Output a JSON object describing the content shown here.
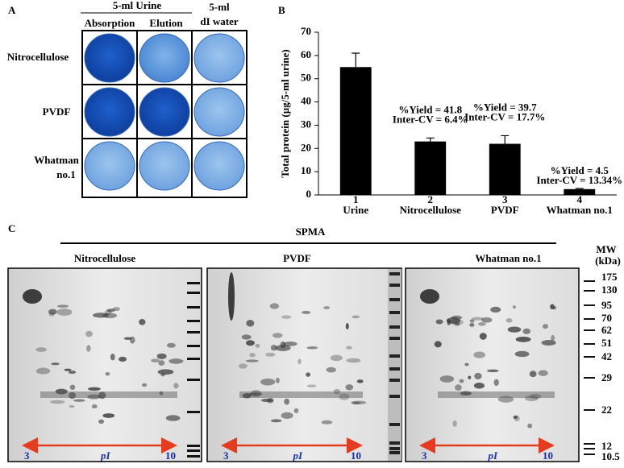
{
  "panel_a": {
    "letter": "A",
    "header": "5-ml Urine",
    "columns": [
      "Absorption",
      "Elution"
    ],
    "water_header": "5-ml",
    "water_label": "dI water",
    "rows": [
      "Nitrocellulose",
      "PVDF",
      "Whatman",
      "no.1"
    ]
  },
  "chart_data": {
    "type": "bar",
    "letter": "B",
    "ylabel": "Total protein (µg/5-ml urine)",
    "categories": [
      "Urine",
      "Nitrocellulose",
      "PVDF",
      "Whatman no.1"
    ],
    "bar_numbers": [
      "1",
      "2",
      "3",
      "4"
    ],
    "values": [
      55,
      23,
      22,
      2.5
    ],
    "errors": [
      6,
      1.5,
      3.5,
      0.3
    ],
    "color": "#000000",
    "ylim": [
      0,
      70
    ],
    "yticks": [
      0,
      10,
      20,
      30,
      40,
      50,
      60,
      70
    ],
    "annotations": [
      null,
      [
        "%Yield = 41.8",
        "Inter-CV = 6.4%"
      ],
      [
        "%Yield = 39.7",
        "Inter-CV = 17.7%"
      ],
      [
        "%Yield = 4.5",
        "Inter-CV = 13.34%"
      ]
    ]
  },
  "panel_c": {
    "letter": "C",
    "title": "SPMA",
    "gels": [
      "Nitrocellulose",
      "PVDF",
      "Whatman no.1"
    ],
    "mw_title": "MW",
    "mw_unit": "(kDa)",
    "mw": [
      "175",
      "130",
      "95",
      "70",
      "62",
      "51",
      "42",
      "29",
      "22",
      "12",
      "10.5"
    ],
    "pi_low": "3",
    "pi_label": "pI",
    "pi_high": "10"
  }
}
